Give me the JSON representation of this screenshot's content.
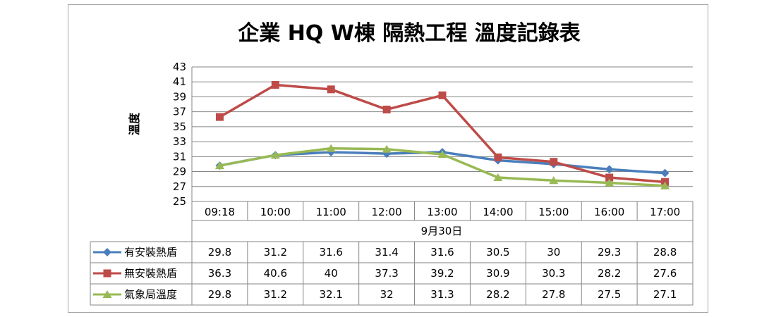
{
  "chart_data": {
    "type": "line",
    "title": "企業 HQ W棟 隔熱工程 溫度記錄表",
    "ylabel": "溫度",
    "xlabel": "9月30日",
    "ylim": [
      25,
      43
    ],
    "yticks": [
      25,
      27,
      29,
      31,
      33,
      35,
      37,
      39,
      41,
      43
    ],
    "grid": true,
    "legend": "data-table",
    "categories": [
      "09:18",
      "10:00",
      "11:00",
      "12:00",
      "13:00",
      "14:00",
      "15:00",
      "16:00",
      "17:00"
    ],
    "series": [
      {
        "name": "有安裝熱盾",
        "color": "#4a7ebb",
        "marker": "diamond",
        "values": [
          29.8,
          31.2,
          31.6,
          31.4,
          31.6,
          30.5,
          30,
          29.3,
          28.8
        ]
      },
      {
        "name": "無安裝熱盾",
        "color": "#be4b48",
        "marker": "square",
        "values": [
          36.3,
          40.6,
          40,
          37.3,
          39.2,
          30.9,
          30.3,
          28.2,
          27.6
        ]
      },
      {
        "name": "氣象局溫度",
        "color": "#98b954",
        "marker": "triangle",
        "values": [
          29.8,
          31.2,
          32.1,
          32,
          31.3,
          28.2,
          27.8,
          27.5,
          27.1
        ]
      }
    ]
  }
}
